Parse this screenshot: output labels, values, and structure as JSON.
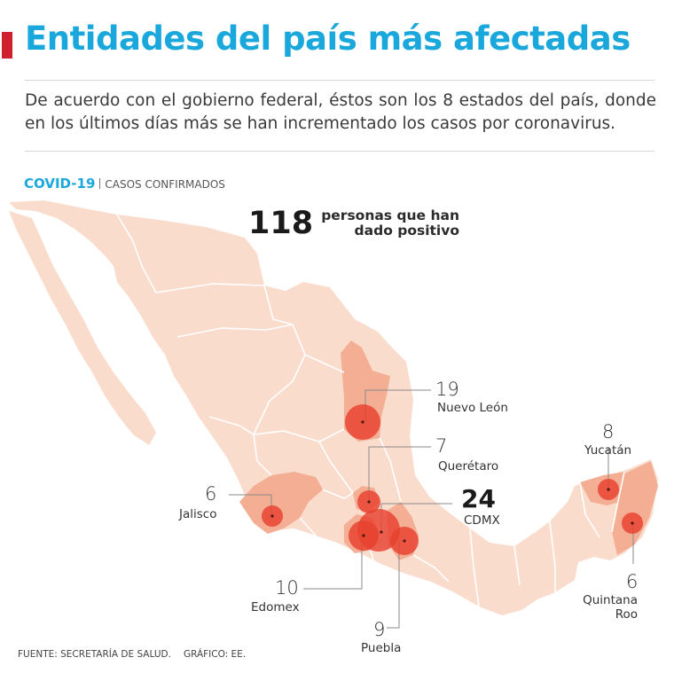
{
  "header": {
    "title": "Entidades del país más afectadas",
    "subtitle": "De acuerdo con el gobierno federal, éstos son los 8 estados del país, donde en los últimos días más se han incrementado los casos por coronavirus."
  },
  "kicker": {
    "topic": "COVID-19",
    "label": "CASOS CONFIRMADOS"
  },
  "total": {
    "value": "118",
    "label_line1": "personas que han",
    "label_line2": "dado positivo"
  },
  "states": [
    {
      "id": "nuevo-leon",
      "name": "Nuevo León",
      "cases": "19"
    },
    {
      "id": "queretaro",
      "name": "Querétaro",
      "cases": "7"
    },
    {
      "id": "cdmx",
      "name": "CDMX",
      "cases": "24"
    },
    {
      "id": "jalisco",
      "name": "Jalisco",
      "cases": "6"
    },
    {
      "id": "edomex",
      "name": "Edomex",
      "cases": "10"
    },
    {
      "id": "puebla",
      "name": "Puebla",
      "cases": "9"
    },
    {
      "id": "yucatan",
      "name": "Yucatán",
      "cases": "8"
    },
    {
      "id": "quintana-roo",
      "name": "Quintana",
      "name2": "Roo",
      "cases": "6"
    }
  ],
  "footer": {
    "source": "FUENTE: SECRETARÍA DE SALUD.",
    "graphic": "GRÁFICO: EE."
  },
  "colors": {
    "title": "#1aa8dc",
    "accent_bar": "#d0202f",
    "land": "#fadccd",
    "affected": "#f3ae93",
    "bubble": "#e8412f",
    "border": "#ffffff"
  }
}
